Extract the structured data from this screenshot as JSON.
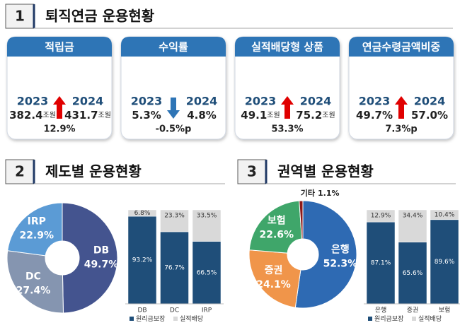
{
  "sections": [
    {
      "number": "1",
      "title": "퇴직연금 운용현황"
    },
    {
      "number": "2",
      "title": "제도별 운용현황"
    },
    {
      "number": "3",
      "title": "권역별 운용현황"
    }
  ],
  "cards": [
    {
      "title": "적립금",
      "year_from": "2023",
      "year_to": "2024",
      "value_from": "382.4",
      "unit_from": "조원",
      "value_to": "431.7",
      "unit_to": "조원",
      "change": "12.9%",
      "direction": "up"
    },
    {
      "title": "수익률",
      "year_from": "2023",
      "year_to": "2024",
      "value_from": "5.3%",
      "value_to": "4.8%",
      "change": "-0.5%p",
      "direction": "down"
    },
    {
      "title": "실적배당형 상품",
      "year_from": "2023",
      "year_to": "2024",
      "value_from": "49.1",
      "unit_from": "조원",
      "value_to": "75.2",
      "unit_to": "조원",
      "change": "53.3%",
      "direction": "up"
    },
    {
      "title": "연금수령금액비중",
      "year_from": "2023",
      "year_to": "2024",
      "value_from": "49.7%",
      "value_to": "57.0%",
      "change": "7.3%p",
      "direction": "up"
    }
  ],
  "chart_data": [
    {
      "type": "donut",
      "categories": [
        "DB",
        "DC",
        "IRP"
      ],
      "values": [
        49.7,
        27.4,
        22.9
      ],
      "value_labels": [
        "49.7%",
        "27.4%",
        "22.9%"
      ],
      "colors": [
        "#44548f",
        "#8595b0",
        "#5b9bd5"
      ]
    },
    {
      "type": "stacked_bar",
      "categories": [
        "DB",
        "DC",
        "IRP"
      ],
      "ylim": [
        0,
        100
      ],
      "series": [
        {
          "name": "원리금보장",
          "color": "#1f4e79",
          "values": [
            93.2,
            76.7,
            66.5
          ],
          "value_labels": [
            "93.2%",
            "76.7%",
            "66.5%"
          ]
        },
        {
          "name": "실적배당",
          "color": "#d9d9d9",
          "values": [
            6.8,
            23.3,
            33.5
          ],
          "value_labels": [
            "6.8%",
            "23.3%",
            "33.5%"
          ]
        }
      ]
    },
    {
      "type": "donut",
      "categories": [
        "은행",
        "증권",
        "보험",
        "기타"
      ],
      "values": [
        52.3,
        24.1,
        22.6,
        1.1
      ],
      "value_labels": [
        "52.3%",
        "24.1%",
        "22.6%",
        "1.1%"
      ],
      "colors": [
        "#2e6ab3",
        "#f0954a",
        "#3fa66a",
        "#8b1a1a"
      ]
    },
    {
      "type": "stacked_bar",
      "categories": [
        "은행",
        "증권",
        "보험"
      ],
      "ylim": [
        0,
        100
      ],
      "series": [
        {
          "name": "원리금보장",
          "color": "#1f4e79",
          "values": [
            87.1,
            65.6,
            89.6
          ],
          "value_labels": [
            "87.1%",
            "65.6%",
            "89.6%"
          ]
        },
        {
          "name": "실적배당",
          "color": "#d9d9d9",
          "values": [
            12.9,
            34.4,
            10.4
          ],
          "value_labels": [
            "12.9%",
            "34.4%",
            "10.4%"
          ]
        }
      ]
    }
  ]
}
